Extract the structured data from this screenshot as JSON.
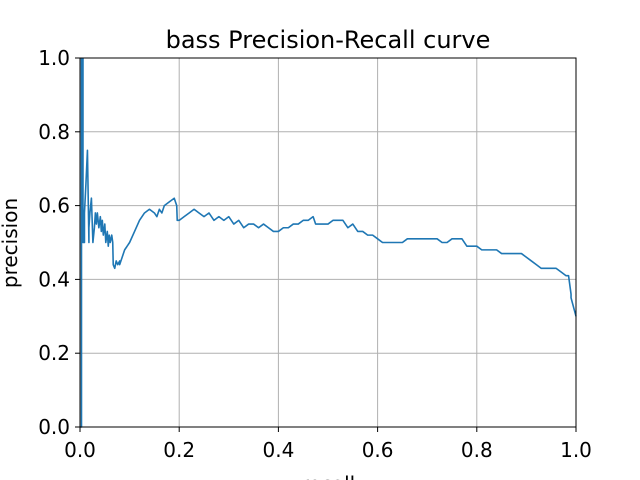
{
  "chart_data": {
    "type": "line",
    "title": "bass Precision-Recall curve",
    "xlabel": "recall",
    "ylabel": "precision",
    "xlim": [
      0.0,
      1.0
    ],
    "ylim": [
      0.0,
      1.0
    ],
    "xticks": [
      "0.0",
      "0.2",
      "0.4",
      "0.6",
      "0.8",
      "1.0"
    ],
    "yticks": [
      "0.0",
      "0.2",
      "0.4",
      "0.6",
      "0.8",
      "1.0"
    ],
    "grid": true,
    "line_color": "#1f77b4",
    "series": [
      {
        "x": [
          0.0,
          0.003,
          0.003,
          0.006,
          0.006,
          0.009,
          0.009,
          0.012,
          0.015,
          0.018,
          0.018,
          0.02,
          0.023,
          0.026,
          0.029,
          0.031,
          0.033,
          0.035,
          0.038,
          0.041,
          0.043,
          0.045,
          0.047,
          0.05,
          0.052,
          0.055,
          0.057,
          0.059,
          0.061,
          0.064,
          0.066,
          0.067,
          0.07,
          0.073,
          0.076,
          0.08,
          0.08,
          0.085,
          0.09,
          0.1,
          0.11,
          0.12,
          0.13,
          0.14,
          0.15,
          0.155,
          0.16,
          0.165,
          0.17,
          0.18,
          0.19,
          0.195,
          0.196,
          0.2,
          0.21,
          0.22,
          0.23,
          0.24,
          0.25,
          0.26,
          0.27,
          0.28,
          0.29,
          0.3,
          0.31,
          0.32,
          0.33,
          0.34,
          0.35,
          0.36,
          0.37,
          0.38,
          0.39,
          0.4,
          0.41,
          0.42,
          0.43,
          0.44,
          0.45,
          0.46,
          0.47,
          0.475,
          0.48,
          0.49,
          0.5,
          0.51,
          0.52,
          0.53,
          0.54,
          0.55,
          0.56,
          0.57,
          0.58,
          0.59,
          0.6,
          0.61,
          0.62,
          0.63,
          0.64,
          0.65,
          0.66,
          0.67,
          0.68,
          0.69,
          0.7,
          0.71,
          0.72,
          0.73,
          0.74,
          0.75,
          0.76,
          0.77,
          0.78,
          0.79,
          0.8,
          0.81,
          0.82,
          0.83,
          0.84,
          0.85,
          0.86,
          0.87,
          0.88,
          0.89,
          0.9,
          0.91,
          0.92,
          0.93,
          0.94,
          0.95,
          0.96,
          0.97,
          0.98,
          0.985,
          0.99,
          0.99,
          1.0
        ],
        "y": [
          0.0,
          0.0,
          1.0,
          1.0,
          0.5,
          0.5,
          0.58,
          0.66,
          0.75,
          0.5,
          0.54,
          0.58,
          0.62,
          0.5,
          0.54,
          0.58,
          0.55,
          0.58,
          0.54,
          0.57,
          0.53,
          0.56,
          0.52,
          0.55,
          0.5,
          0.53,
          0.49,
          0.52,
          0.5,
          0.52,
          0.5,
          0.44,
          0.43,
          0.45,
          0.44,
          0.45,
          0.44,
          0.46,
          0.48,
          0.5,
          0.53,
          0.56,
          0.58,
          0.59,
          0.58,
          0.57,
          0.59,
          0.58,
          0.6,
          0.61,
          0.62,
          0.6,
          0.56,
          0.56,
          0.57,
          0.58,
          0.59,
          0.58,
          0.57,
          0.58,
          0.56,
          0.57,
          0.56,
          0.57,
          0.55,
          0.56,
          0.54,
          0.55,
          0.55,
          0.54,
          0.55,
          0.54,
          0.53,
          0.53,
          0.54,
          0.54,
          0.55,
          0.55,
          0.56,
          0.56,
          0.57,
          0.55,
          0.55,
          0.55,
          0.55,
          0.56,
          0.56,
          0.56,
          0.54,
          0.55,
          0.53,
          0.53,
          0.52,
          0.52,
          0.51,
          0.5,
          0.5,
          0.5,
          0.5,
          0.5,
          0.51,
          0.51,
          0.51,
          0.51,
          0.51,
          0.51,
          0.51,
          0.5,
          0.5,
          0.51,
          0.51,
          0.51,
          0.49,
          0.49,
          0.49,
          0.48,
          0.48,
          0.48,
          0.48,
          0.47,
          0.47,
          0.47,
          0.47,
          0.47,
          0.46,
          0.45,
          0.44,
          0.43,
          0.43,
          0.43,
          0.43,
          0.42,
          0.41,
          0.41,
          0.36,
          0.35,
          0.3
        ]
      }
    ]
  }
}
